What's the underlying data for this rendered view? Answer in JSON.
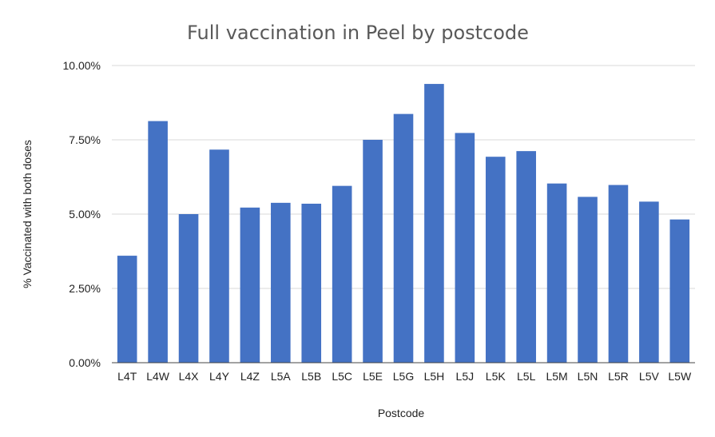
{
  "chart_data": {
    "type": "bar",
    "title": "Full vaccination in Peel by postcode",
    "xlabel": "Postcode",
    "ylabel": "% Vaccinated with both  doses",
    "categories": [
      "L4T",
      "L4W",
      "L4X",
      "L4Y",
      "L4Z",
      "L5A",
      "L5B",
      "L5C",
      "L5E",
      "L5G",
      "L5H",
      "L5J",
      "L5K",
      "L5L",
      "L5M",
      "L5N",
      "L5R",
      "L5V",
      "L5W"
    ],
    "values": [
      3.6,
      8.13,
      5.0,
      7.17,
      5.22,
      5.38,
      5.35,
      5.95,
      7.5,
      8.37,
      9.38,
      7.73,
      6.93,
      7.12,
      6.03,
      5.58,
      5.98,
      5.42,
      4.82
    ],
    "ylim": [
      0,
      10
    ],
    "yticks": [
      0,
      2.5,
      5,
      7.5,
      10
    ],
    "ytick_labels": [
      "0.00%",
      "2.50%",
      "5.00%",
      "7.50%",
      "10.00%"
    ],
    "bar_color": "#4472c4",
    "grid": true,
    "legend": "none"
  }
}
